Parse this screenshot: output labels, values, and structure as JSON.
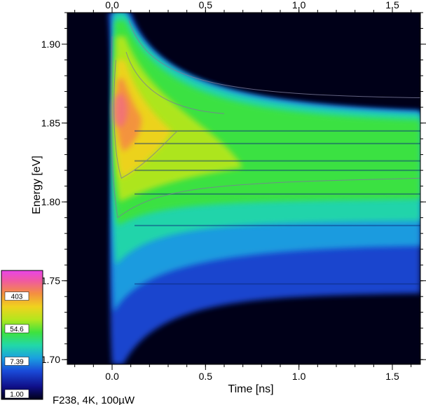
{
  "chart_data": {
    "type": "heatmap",
    "title": "",
    "caption": "F238, 4K, 100µW",
    "xlabel": "Time  [ns]",
    "ylabel": "Energy  [eV]",
    "xlim": [
      -0.24,
      1.65
    ],
    "ylim": [
      1.697,
      1.92
    ],
    "x_ticks": [
      "0.0",
      "0.5",
      "1.0",
      "1.5"
    ],
    "x_tick_values": [
      0.0,
      0.5,
      1.0,
      1.5
    ],
    "y_ticks": [
      "1.70",
      "1.75",
      "1.80",
      "1.85",
      "1.90"
    ],
    "y_tick_values": [
      1.7,
      1.75,
      1.8,
      1.85,
      1.9
    ],
    "colorbar": {
      "scale": "log",
      "labels": [
        "1.00",
        "7.39",
        "54.6",
        "403"
      ],
      "values": [
        1.0,
        7.39,
        54.6,
        403
      ],
      "colors": [
        "#000018",
        "#10108a",
        "#1a4ad8",
        "#1aa0e0",
        "#22d8a8",
        "#3ee23e",
        "#b4e61e",
        "#f0d21e",
        "#f49040",
        "#f05aa0",
        "#e844e8"
      ]
    },
    "emission_peak": {
      "time_ns": 0.04,
      "energy_ev": 1.858
    },
    "emission_lines_ev": [
      1.845,
      1.837,
      1.826,
      1.82,
      1.805,
      1.785,
      1.748
    ],
    "grid": false
  }
}
